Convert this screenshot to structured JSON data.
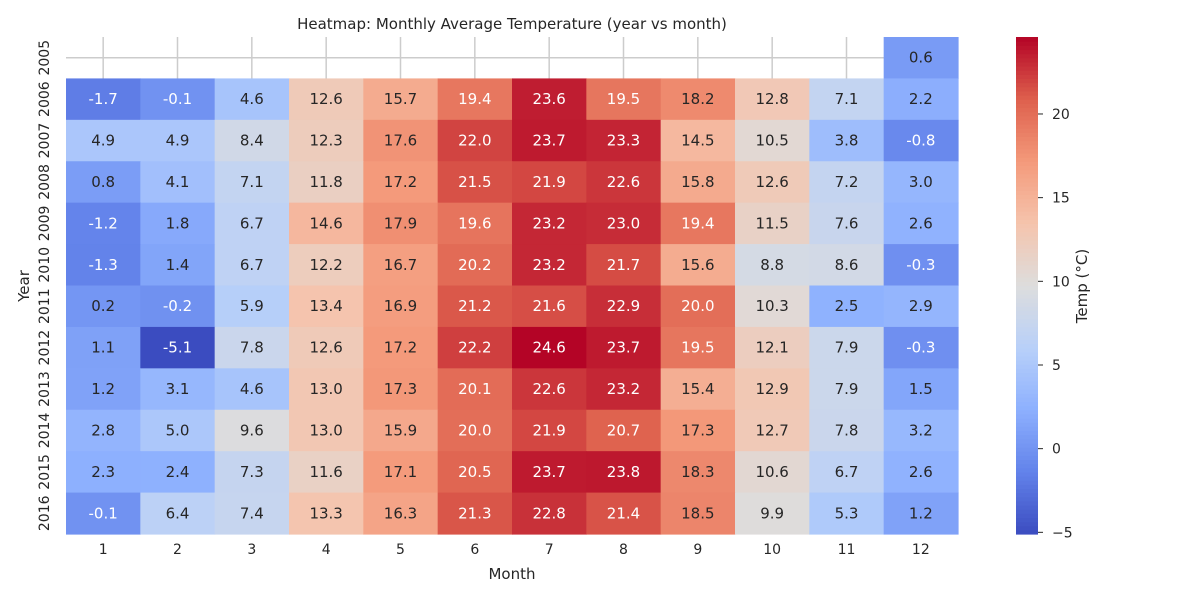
{
  "chart_data": {
    "type": "heatmap",
    "title": "Heatmap: Monthly Average Temperature (year vs month)",
    "xlabel": "Month",
    "ylabel": "Year",
    "colorbar_label": "Temp (°C)",
    "colormap": "coolwarm",
    "vmin": -5.1,
    "vmax": 24.6,
    "colorbar_ticks": [
      -5,
      0,
      5,
      10,
      15,
      20
    ],
    "x_categories": [
      "1",
      "2",
      "3",
      "4",
      "5",
      "6",
      "7",
      "8",
      "9",
      "10",
      "11",
      "12"
    ],
    "y_categories": [
      "2005",
      "2006",
      "2007",
      "2008",
      "2009",
      "2010",
      "2011",
      "2012",
      "2013",
      "2014",
      "2015",
      "2016"
    ],
    "values": [
      [
        null,
        null,
        null,
        null,
        null,
        null,
        null,
        null,
        null,
        null,
        null,
        0.6
      ],
      [
        -1.7,
        -0.1,
        4.6,
        12.6,
        15.7,
        19.4,
        23.6,
        19.5,
        18.2,
        12.8,
        7.1,
        2.2
      ],
      [
        4.9,
        4.9,
        8.4,
        12.3,
        17.6,
        22.0,
        23.7,
        23.3,
        14.5,
        10.5,
        3.8,
        -0.8
      ],
      [
        0.8,
        4.1,
        7.1,
        11.8,
        17.2,
        21.5,
        21.9,
        22.6,
        15.8,
        12.6,
        7.2,
        3.0
      ],
      [
        -1.2,
        1.8,
        6.7,
        14.6,
        17.9,
        19.6,
        23.2,
        23.0,
        19.4,
        11.5,
        7.6,
        2.6
      ],
      [
        -1.3,
        1.4,
        6.7,
        12.2,
        16.7,
        20.2,
        23.2,
        21.7,
        15.6,
        8.8,
        8.6,
        -0.3
      ],
      [
        0.2,
        -0.2,
        5.9,
        13.4,
        16.9,
        21.2,
        21.6,
        22.9,
        20.0,
        10.3,
        2.5,
        2.9
      ],
      [
        1.1,
        -5.1,
        7.8,
        12.6,
        17.2,
        22.2,
        24.6,
        23.7,
        19.5,
        12.1,
        7.9,
        -0.3
      ],
      [
        1.2,
        3.1,
        4.6,
        13.0,
        17.3,
        20.1,
        22.6,
        23.2,
        15.4,
        12.9,
        7.9,
        1.5
      ],
      [
        2.8,
        5.0,
        9.6,
        13.0,
        15.9,
        20.0,
        21.9,
        20.7,
        17.3,
        12.7,
        7.8,
        3.2
      ],
      [
        2.3,
        2.4,
        7.3,
        11.6,
        17.1,
        20.5,
        23.7,
        23.8,
        18.3,
        10.6,
        6.7,
        2.6
      ],
      [
        -0.1,
        6.4,
        7.4,
        13.3,
        16.3,
        21.3,
        22.8,
        21.4,
        18.5,
        9.9,
        5.3,
        1.2
      ]
    ],
    "grid": true,
    "annotations": true
  }
}
